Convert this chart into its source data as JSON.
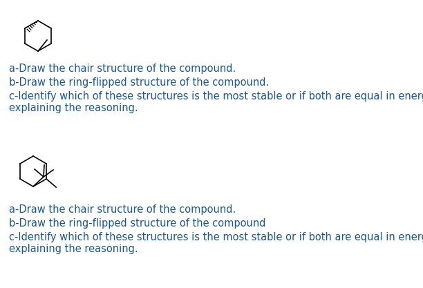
{
  "bg_color": "#ffffff",
  "text_color": "#1a5796",
  "font_size": 10.5,
  "line1": "a-Draw the chair structure of the compound.",
  "line2": "b-Draw the ring-flipped structure of the compound.",
  "line3a": "c-Identify which of these structures is the most stable or if both are equal in energy",
  "line3b": "explaining the reasoning.",
  "line4": "a-Draw the chair structure of the compound.",
  "line5": "b-Draw the ring-flipped structure of the compound",
  "line6a": "c-Identify which of these structures is the most stable or if both are equal in energy",
  "line6b": "explaining the reasoning."
}
